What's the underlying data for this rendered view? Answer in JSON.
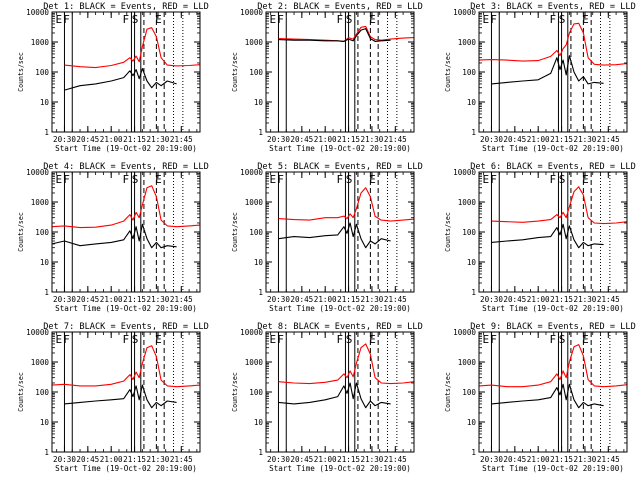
{
  "chart_data": {
    "type": "line",
    "grid_layout": "3x3",
    "y_scale": "log",
    "ylim": [
      1,
      10000
    ],
    "xlim": [
      "20:22",
      "21:57"
    ],
    "y_ticks": [
      "1",
      "10",
      "100",
      "1000",
      "10000"
    ],
    "x_ticks": [
      "20:30",
      "20:45",
      "21:00",
      "21:15",
      "21:30",
      "21:45"
    ],
    "ylabel": "Counts/sec",
    "xlabel": "Start Time (19-Oct-02 20:19:00)",
    "series": [
      {
        "key": "events",
        "color": "#000000"
      },
      {
        "key": "lld",
        "color": "#ff0000"
      }
    ],
    "marker_labels": [
      "E",
      "F",
      "F",
      "S",
      "E"
    ],
    "panels": [
      {
        "title": "Det 1: BLACK = Events, RED = LLD",
        "lld": {
          "x": [
            "20:30",
            "20:40",
            "20:50",
            "21:00",
            "21:08",
            "21:12",
            "21:14",
            "21:16",
            "21:18",
            "21:20",
            "21:23",
            "21:26",
            "21:29",
            "21:32",
            "21:36",
            "21:42",
            "21:50",
            "21:57"
          ],
          "y": [
            170,
            150,
            140,
            165,
            210,
            300,
            230,
            340,
            220,
            700,
            2700,
            3000,
            1500,
            300,
            170,
            160,
            165,
            175
          ]
        },
        "events": {
          "x": [
            "20:30",
            "20:40",
            "20:50",
            "21:00",
            "21:08",
            "21:12",
            "21:14",
            "21:16",
            "21:18",
            "21:20",
            "21:23",
            "21:26",
            "21:29",
            "21:32",
            "21:36",
            "21:42"
          ],
          "y": [
            25,
            35,
            40,
            50,
            65,
            110,
            75,
            120,
            60,
            130,
            50,
            30,
            45,
            35,
            50,
            40
          ]
        },
        "vlines_solid": [
          "20:30",
          "20:35",
          "21:13",
          "21:15",
          "21:19"
        ],
        "vlines_dashed": [
          "21:21",
          "21:29",
          "21:34"
        ],
        "vlines_dotted": [
          "21:40",
          "21:46"
        ]
      },
      {
        "title": "Det 2: BLACK = Events, RED = LLD",
        "lld": {
          "x": [
            "20:30",
            "20:40",
            "20:50",
            "21:00",
            "21:08",
            "21:12",
            "21:15",
            "21:18",
            "21:20",
            "21:23",
            "21:26",
            "21:29",
            "21:32",
            "21:36",
            "21:42",
            "21:50",
            "21:57"
          ],
          "y": [
            1300,
            1250,
            1200,
            1150,
            1100,
            1050,
            1400,
            1250,
            1800,
            3100,
            3300,
            1500,
            1200,
            1150,
            1250,
            1350,
            1400
          ]
        },
        "events": {
          "x": [
            "20:30",
            "20:40",
            "20:50",
            "21:00",
            "21:08",
            "21:12",
            "21:15",
            "21:18",
            "21:20",
            "21:23",
            "21:26",
            "21:29",
            "21:32",
            "21:36",
            "21:42"
          ],
          "y": [
            1200,
            1150,
            1150,
            1100,
            1100,
            1050,
            1250,
            1100,
            1600,
            2500,
            2800,
            1300,
            1050,
            1100,
            1150
          ]
        },
        "vlines_solid": [
          "20:30",
          "20:35",
          "21:13",
          "21:15",
          "21:19"
        ],
        "vlines_dashed": [
          "21:21",
          "21:29",
          "21:34"
        ],
        "vlines_dotted": [
          "21:40",
          "21:46"
        ]
      },
      {
        "title": "Det 3: BLACK = Events, RED = LLD",
        "lld": {
          "x": [
            "20:22",
            "20:30",
            "20:40",
            "20:50",
            "21:00",
            "21:08",
            "21:12",
            "21:14",
            "21:16",
            "21:18",
            "21:20",
            "21:23",
            "21:26",
            "21:29",
            "21:32",
            "21:36",
            "21:42",
            "21:50",
            "21:57"
          ],
          "y": [
            250,
            260,
            250,
            230,
            240,
            330,
            520,
            350,
            600,
            800,
            2000,
            4000,
            4200,
            2000,
            300,
            180,
            170,
            175,
            190
          ]
        },
        "events": {
          "x": [
            "20:30",
            "20:40",
            "20:50",
            "21:00",
            "21:08",
            "21:12",
            "21:14",
            "21:16",
            "21:18",
            "21:20",
            "21:23",
            "21:26",
            "21:29",
            "21:32",
            "21:36",
            "21:42"
          ],
          "y": [
            40,
            45,
            50,
            55,
            90,
            300,
            120,
            250,
            80,
            350,
            100,
            50,
            70,
            40,
            45,
            42
          ]
        },
        "vlines_solid": [
          "20:30",
          "20:35",
          "21:13",
          "21:15",
          "21:19"
        ],
        "vlines_dashed": [
          "21:21",
          "21:29",
          "21:34"
        ],
        "vlines_dotted": [
          "21:40",
          "21:46"
        ]
      },
      {
        "title": "Det 4: BLACK = Events, RED = LLD",
        "lld": {
          "x": [
            "20:22",
            "20:30",
            "20:40",
            "20:50",
            "21:00",
            "21:08",
            "21:12",
            "21:14",
            "21:16",
            "21:18",
            "21:20",
            "21:23",
            "21:26",
            "21:29",
            "21:32",
            "21:36",
            "21:42",
            "21:50",
            "21:57"
          ],
          "y": [
            150,
            160,
            140,
            145,
            170,
            230,
            380,
            250,
            450,
            300,
            800,
            3000,
            3500,
            1500,
            250,
            160,
            150,
            160,
            170
          ]
        },
        "events": {
          "x": [
            "20:22",
            "20:30",
            "20:40",
            "20:50",
            "21:00",
            "21:08",
            "21:12",
            "21:14",
            "21:16",
            "21:18",
            "21:20",
            "21:23",
            "21:26",
            "21:29",
            "21:32",
            "21:36",
            "21:42"
          ],
          "y": [
            40,
            50,
            35,
            40,
            45,
            55,
            110,
            60,
            150,
            50,
            180,
            60,
            30,
            45,
            30,
            35,
            32
          ]
        },
        "vlines_solid": [
          "20:30",
          "20:35",
          "21:13",
          "21:15",
          "21:19"
        ],
        "vlines_dashed": [
          "21:21",
          "21:29",
          "21:34"
        ],
        "vlines_dotted": [
          "21:40",
          "21:46"
        ]
      },
      {
        "title": "Det 5: BLACK = Events, RED = LLD",
        "lld": {
          "x": [
            "20:30",
            "20:40",
            "20:50",
            "21:00",
            "21:08",
            "21:12",
            "21:14",
            "21:16",
            "21:18",
            "21:20",
            "21:23",
            "21:26",
            "21:29",
            "21:32",
            "21:36",
            "21:42",
            "21:50",
            "21:57"
          ],
          "y": [
            280,
            260,
            250,
            300,
            300,
            340,
            280,
            400,
            300,
            600,
            2000,
            3000,
            1500,
            330,
            250,
            230,
            250,
            270
          ]
        },
        "events": {
          "x": [
            "20:30",
            "20:40",
            "20:50",
            "21:00",
            "21:08",
            "21:12",
            "21:14",
            "21:16",
            "21:18",
            "21:20",
            "21:23",
            "21:26",
            "21:29",
            "21:32",
            "21:36",
            "21:42"
          ],
          "y": [
            60,
            70,
            65,
            75,
            80,
            150,
            90,
            200,
            70,
            180,
            60,
            30,
            50,
            40,
            60,
            50
          ]
        },
        "vlines_solid": [
          "20:30",
          "20:35",
          "21:13",
          "21:15",
          "21:19"
        ],
        "vlines_dashed": [
          "21:21",
          "21:29",
          "21:34"
        ],
        "vlines_dotted": [
          "21:40",
          "21:46"
        ]
      },
      {
        "title": "Det 6: BLACK = Events, RED = LLD",
        "lld": {
          "x": [
            "20:30",
            "20:40",
            "20:50",
            "21:00",
            "21:08",
            "21:12",
            "21:14",
            "21:16",
            "21:18",
            "21:20",
            "21:23",
            "21:26",
            "21:29",
            "21:32",
            "21:36",
            "21:42",
            "21:50",
            "21:57"
          ],
          "y": [
            230,
            220,
            210,
            230,
            260,
            380,
            300,
            450,
            300,
            700,
            2200,
            3200,
            1700,
            300,
            200,
            190,
            200,
            220
          ]
        },
        "events": {
          "x": [
            "20:30",
            "20:40",
            "20:50",
            "21:00",
            "21:08",
            "21:12",
            "21:14",
            "21:16",
            "21:18",
            "21:20",
            "21:23",
            "21:26",
            "21:29",
            "21:32",
            "21:36",
            "21:42"
          ],
          "y": [
            45,
            50,
            55,
            65,
            70,
            140,
            80,
            180,
            60,
            160,
            55,
            30,
            45,
            35,
            40,
            38
          ]
        },
        "vlines_solid": [
          "20:30",
          "20:35",
          "21:13",
          "21:15",
          "21:19"
        ],
        "vlines_dashed": [
          "21:21",
          "21:29",
          "21:34"
        ],
        "vlines_dotted": [
          "21:40",
          "21:46"
        ]
      },
      {
        "title": "Det 7: BLACK = Events, RED = LLD",
        "lld": {
          "x": [
            "20:22",
            "20:30",
            "20:40",
            "20:50",
            "21:00",
            "21:08",
            "21:12",
            "21:14",
            "21:16",
            "21:18",
            "21:20",
            "21:23",
            "21:26",
            "21:29",
            "21:32",
            "21:36",
            "21:42",
            "21:50",
            "21:57"
          ],
          "y": [
            170,
            180,
            160,
            160,
            180,
            230,
            380,
            260,
            460,
            300,
            900,
            3000,
            3500,
            1500,
            250,
            160,
            150,
            160,
            170
          ]
        },
        "events": {
          "x": [
            "20:30",
            "20:40",
            "20:50",
            "21:00",
            "21:08",
            "21:12",
            "21:14",
            "21:16",
            "21:18",
            "21:20",
            "21:23",
            "21:26",
            "21:29",
            "21:32",
            "21:36",
            "21:42"
          ],
          "y": [
            40,
            45,
            50,
            55,
            60,
            120,
            70,
            160,
            55,
            170,
            55,
            30,
            45,
            35,
            50,
            45
          ]
        },
        "vlines_solid": [
          "20:30",
          "20:35",
          "21:13",
          "21:15",
          "21:19"
        ],
        "vlines_dashed": [
          "21:21",
          "21:29",
          "21:34"
        ],
        "vlines_dotted": [
          "21:40",
          "21:46"
        ]
      },
      {
        "title": "Det 8: BLACK = Events, RED = LLD",
        "lld": {
          "x": [
            "20:30",
            "20:40",
            "20:50",
            "21:00",
            "21:08",
            "21:12",
            "21:14",
            "21:16",
            "21:18",
            "21:20",
            "21:23",
            "21:26",
            "21:29",
            "21:32",
            "21:36",
            "21:42",
            "21:50",
            "21:57"
          ],
          "y": [
            220,
            200,
            190,
            210,
            250,
            400,
            300,
            500,
            320,
            900,
            3000,
            4000,
            1800,
            300,
            200,
            190,
            200,
            220
          ]
        },
        "events": {
          "x": [
            "20:30",
            "20:40",
            "20:50",
            "21:00",
            "21:08",
            "21:12",
            "21:14",
            "21:16",
            "21:18",
            "21:20",
            "21:23",
            "21:26",
            "21:29",
            "21:32",
            "21:36",
            "21:42"
          ],
          "y": [
            45,
            40,
            45,
            55,
            70,
            160,
            90,
            200,
            60,
            200,
            60,
            30,
            50,
            35,
            45,
            40
          ]
        },
        "vlines_solid": [
          "20:30",
          "20:35",
          "21:13",
          "21:15",
          "21:19"
        ],
        "vlines_dashed": [
          "21:21",
          "21:29",
          "21:34"
        ],
        "vlines_dotted": [
          "21:40",
          "21:46"
        ]
      },
      {
        "title": "Det 9: BLACK = Events, RED = LLD",
        "lld": {
          "x": [
            "20:22",
            "20:30",
            "20:40",
            "20:50",
            "21:00",
            "21:08",
            "21:12",
            "21:14",
            "21:16",
            "21:18",
            "21:20",
            "21:23",
            "21:26",
            "21:29",
            "21:32",
            "21:36",
            "21:42",
            "21:50",
            "21:57"
          ],
          "y": [
            160,
            170,
            150,
            150,
            170,
            220,
            400,
            260,
            500,
            300,
            1000,
            3200,
            3800,
            1600,
            260,
            160,
            150,
            160,
            175
          ]
        },
        "events": {
          "x": [
            "20:30",
            "20:40",
            "20:50",
            "21:00",
            "21:08",
            "21:12",
            "21:14",
            "21:16",
            "21:18",
            "21:20",
            "21:23",
            "21:26",
            "21:29",
            "21:32",
            "21:36",
            "21:42"
          ],
          "y": [
            40,
            45,
            50,
            55,
            65,
            140,
            80,
            180,
            55,
            180,
            55,
            30,
            45,
            35,
            40,
            35
          ]
        },
        "vlines_solid": [
          "20:30",
          "20:35",
          "21:13",
          "21:15",
          "21:19"
        ],
        "vlines_dashed": [
          "21:21",
          "21:29",
          "21:34"
        ],
        "vlines_dotted": [
          "21:40",
          "21:46"
        ]
      }
    ]
  }
}
